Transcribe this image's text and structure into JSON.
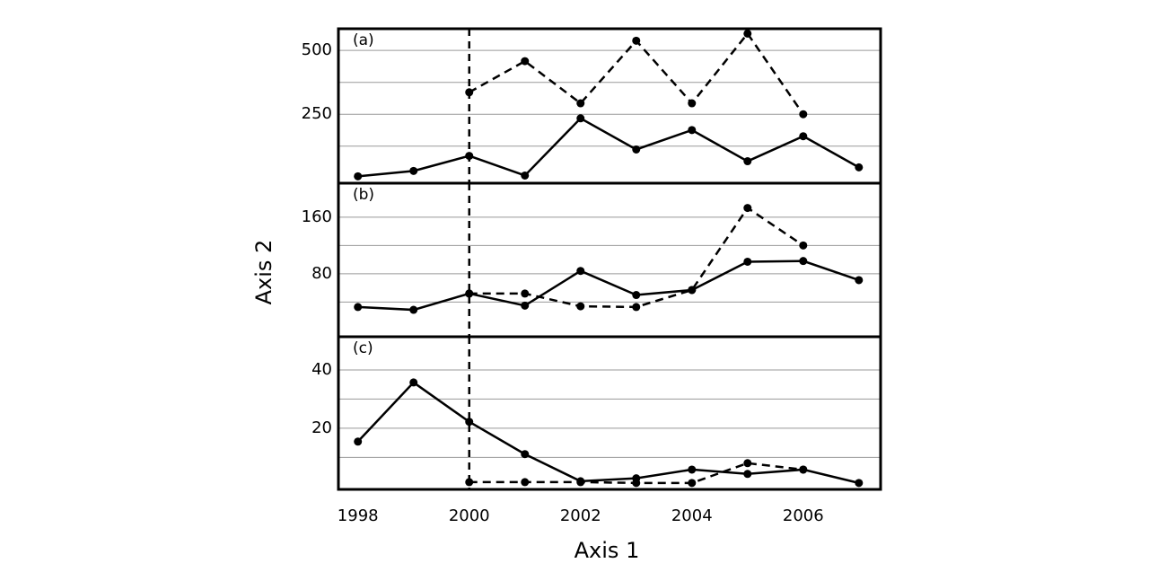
{
  "chart_data": [
    {
      "type": "line",
      "label": "(a)",
      "x": [
        1998,
        1999,
        2000,
        2001,
        2002,
        2003,
        2004,
        2005,
        2006,
        2007
      ],
      "xlim": [
        1997.65,
        2007.39
      ],
      "ylim": [
        -20,
        585
      ],
      "yticks": [
        250,
        500
      ],
      "minor_gridlines": [
        125,
        375
      ],
      "grid": true,
      "vline_x": 2000,
      "series": [
        {
          "color": "#000000",
          "dashed": false,
          "values": [
            7,
            28,
            87,
            10,
            234,
            112,
            188,
            66,
            164,
            42
          ]
        },
        {
          "color": "#000000",
          "dashed": true,
          "values": [
            null,
            null,
            336,
            458,
            293,
            538,
            293,
            566,
            250,
            null
          ]
        }
      ]
    },
    {
      "type": "line",
      "label": "(b)",
      "ylabel": "Axis 2",
      "x": [
        1998,
        1999,
        2000,
        2001,
        2002,
        2003,
        2004,
        2005,
        2006,
        2007
      ],
      "xlim": [
        1997.65,
        2007.39
      ],
      "ylim": [
        -9,
        208
      ],
      "yticks": [
        80,
        160
      ],
      "minor_gridlines": [
        40,
        120
      ],
      "grid": true,
      "vline_x": 2000,
      "series": [
        {
          "color": "#000000",
          "dashed": false,
          "values": [
            33,
            29,
            52,
            35,
            84,
            50,
            57,
            97,
            98,
            71
          ]
        },
        {
          "color": "#000000",
          "dashed": true,
          "values": [
            null,
            null,
            52,
            52,
            34,
            33,
            57,
            173,
            120,
            null
          ]
        }
      ]
    },
    {
      "type": "line",
      "label": "(c)",
      "xlabel": "Axis 1",
      "x": [
        1998,
        1999,
        2000,
        2001,
        2002,
        2003,
        2004,
        2005,
        2006,
        2007
      ],
      "xlim": [
        1997.65,
        2007.39
      ],
      "xticks": [
        1998,
        2000,
        2002,
        2004,
        2006
      ],
      "ylim": [
        -1,
        51.4
      ],
      "yticks": [
        20,
        40
      ],
      "minor_gridlines": [
        10,
        30
      ],
      "grid": true,
      "vline_x": 2000,
      "series": [
        {
          "color": "#000000",
          "dashed": false,
          "values": [
            15.4,
            35.7,
            22.2,
            11.1,
            1.8,
            2.8,
            5.8,
            4.3,
            5.8,
            1.2
          ]
        },
        {
          "color": "#000000",
          "dashed": true,
          "values": [
            null,
            null,
            1.5,
            1.5,
            1.5,
            1.2,
            1.2,
            8,
            5.8,
            null
          ]
        }
      ]
    }
  ]
}
